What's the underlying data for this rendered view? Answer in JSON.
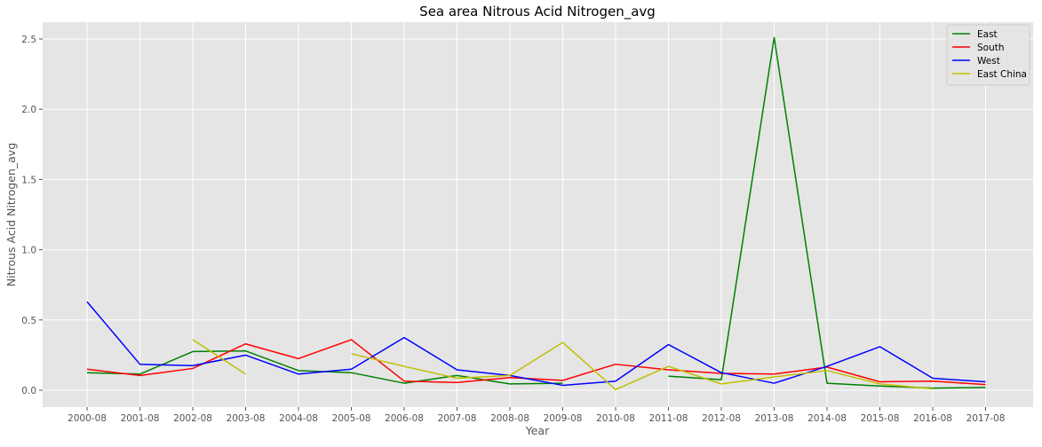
{
  "chart_data": {
    "type": "line",
    "title": "Sea area Nitrous Acid Nitrogen_avg",
    "xlabel": "Year",
    "ylabel": "Nitrous Acid Nitrogen_avg",
    "categories": [
      "2000-08",
      "2001-08",
      "2002-08",
      "2003-08",
      "2004-08",
      "2005-08",
      "2006-08",
      "2007-08",
      "2008-08",
      "2009-08",
      "2010-08",
      "2011-08",
      "2012-08",
      "2013-08",
      "2014-08",
      "2015-08",
      "2016-08",
      "2017-08"
    ],
    "ylim": [
      -0.12,
      2.62
    ],
    "yticks": [
      0.0,
      0.5,
      1.0,
      1.5,
      2.0,
      2.5
    ],
    "ytick_labels": [
      "0.0",
      "0.5",
      "1.0",
      "1.5",
      "2.0",
      "2.5"
    ],
    "grid": true,
    "legend_position": "top-right",
    "series": [
      {
        "name": "East",
        "color": "#008000",
        "values": [
          0.125,
          0.115,
          0.275,
          0.28,
          0.14,
          0.125,
          0.05,
          0.105,
          0.045,
          0.05,
          null,
          0.1,
          0.075,
          2.51,
          0.05,
          0.03,
          0.015,
          0.02
        ]
      },
      {
        "name": "South",
        "color": "#ff0000",
        "values": [
          0.15,
          0.105,
          0.155,
          0.33,
          0.225,
          0.36,
          0.065,
          0.055,
          0.09,
          0.07,
          0.185,
          0.145,
          0.12,
          0.115,
          0.165,
          0.06,
          0.065,
          0.04
        ]
      },
      {
        "name": "West",
        "color": "#0000ff",
        "values": [
          0.63,
          0.185,
          0.175,
          0.25,
          0.115,
          0.15,
          0.375,
          0.145,
          0.105,
          0.035,
          0.065,
          0.325,
          0.125,
          0.05,
          0.17,
          0.31,
          0.085,
          0.06
        ]
      },
      {
        "name": "East China",
        "color": "#bfbf00",
        "values": [
          null,
          null,
          0.36,
          0.115,
          null,
          0.26,
          0.17,
          0.085,
          0.105,
          0.34,
          0.005,
          0.17,
          0.045,
          0.095,
          0.14,
          0.045,
          0.01,
          null
        ]
      }
    ]
  }
}
